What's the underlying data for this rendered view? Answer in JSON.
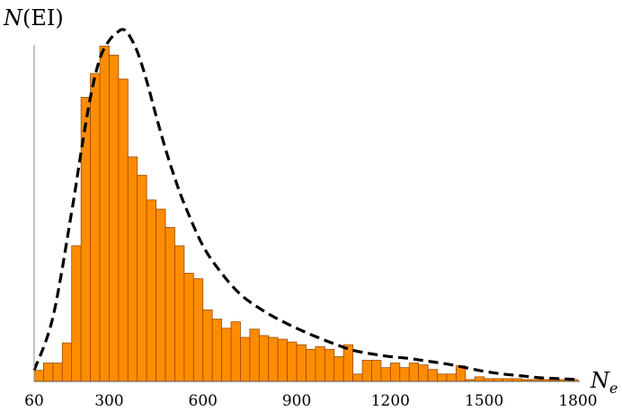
{
  "chart_data": {
    "type": "bar",
    "ylabel_parts": [
      "N",
      "(EI)"
    ],
    "xlabel_parts": [
      "N",
      "e"
    ],
    "xlim": [
      60,
      1800
    ],
    "ylim": [
      0,
      380
    ],
    "x_ticks": [
      60,
      300,
      600,
      900,
      1200,
      1500,
      1800
    ],
    "bin_width": 30,
    "bins_start": [
      60,
      90,
      120,
      150,
      180,
      210,
      240,
      270,
      300,
      330,
      360,
      390,
      420,
      450,
      480,
      510,
      540,
      570,
      600,
      630,
      660,
      690,
      720,
      750,
      780,
      810,
      840,
      870,
      900,
      930,
      960,
      990,
      1020,
      1050,
      1080,
      1110,
      1140,
      1170,
      1200,
      1230,
      1260,
      1290,
      1320,
      1350,
      1380,
      1410,
      1440,
      1470,
      1500,
      1530,
      1560,
      1590,
      1620,
      1650,
      1680,
      1710,
      1740,
      1770
    ],
    "values": [
      12,
      20,
      20,
      42,
      148,
      310,
      336,
      366,
      356,
      330,
      245,
      225,
      198,
      188,
      168,
      148,
      118,
      112,
      78,
      68,
      58,
      65,
      48,
      57,
      50,
      48,
      46,
      43,
      40,
      35,
      38,
      35,
      27,
      40,
      8,
      23,
      23,
      15,
      20,
      15,
      20,
      18,
      13,
      8,
      8,
      17,
      2,
      5,
      3,
      3,
      3,
      3,
      2,
      2,
      2,
      2,
      2,
      2
    ],
    "fit_curve": {
      "style": "dashed",
      "x": [
        60,
        120,
        180,
        210,
        240,
        270,
        300,
        330,
        345,
        360,
        390,
        420,
        450,
        480,
        510,
        540,
        600,
        660,
        720,
        780,
        840,
        900,
        960,
        1020,
        1080,
        1140,
        1200,
        1260,
        1320,
        1380,
        1440,
        1500,
        1560,
        1620,
        1680,
        1740,
        1800
      ],
      "y": [
        12,
        70,
        185,
        250,
        310,
        352,
        372,
        382,
        384,
        380,
        360,
        328,
        290,
        254,
        222,
        194,
        148,
        118,
        95,
        80,
        68,
        58,
        49,
        41,
        34,
        30,
        27,
        25,
        22,
        19,
        15,
        11,
        8,
        6,
        4,
        3,
        2
      ]
    },
    "colors": {
      "bar_fill": "#ff8c00",
      "bar_edge": "#9a4a00",
      "curve": "#000000",
      "axis": "#888888"
    },
    "grid": false,
    "legend": "none"
  }
}
